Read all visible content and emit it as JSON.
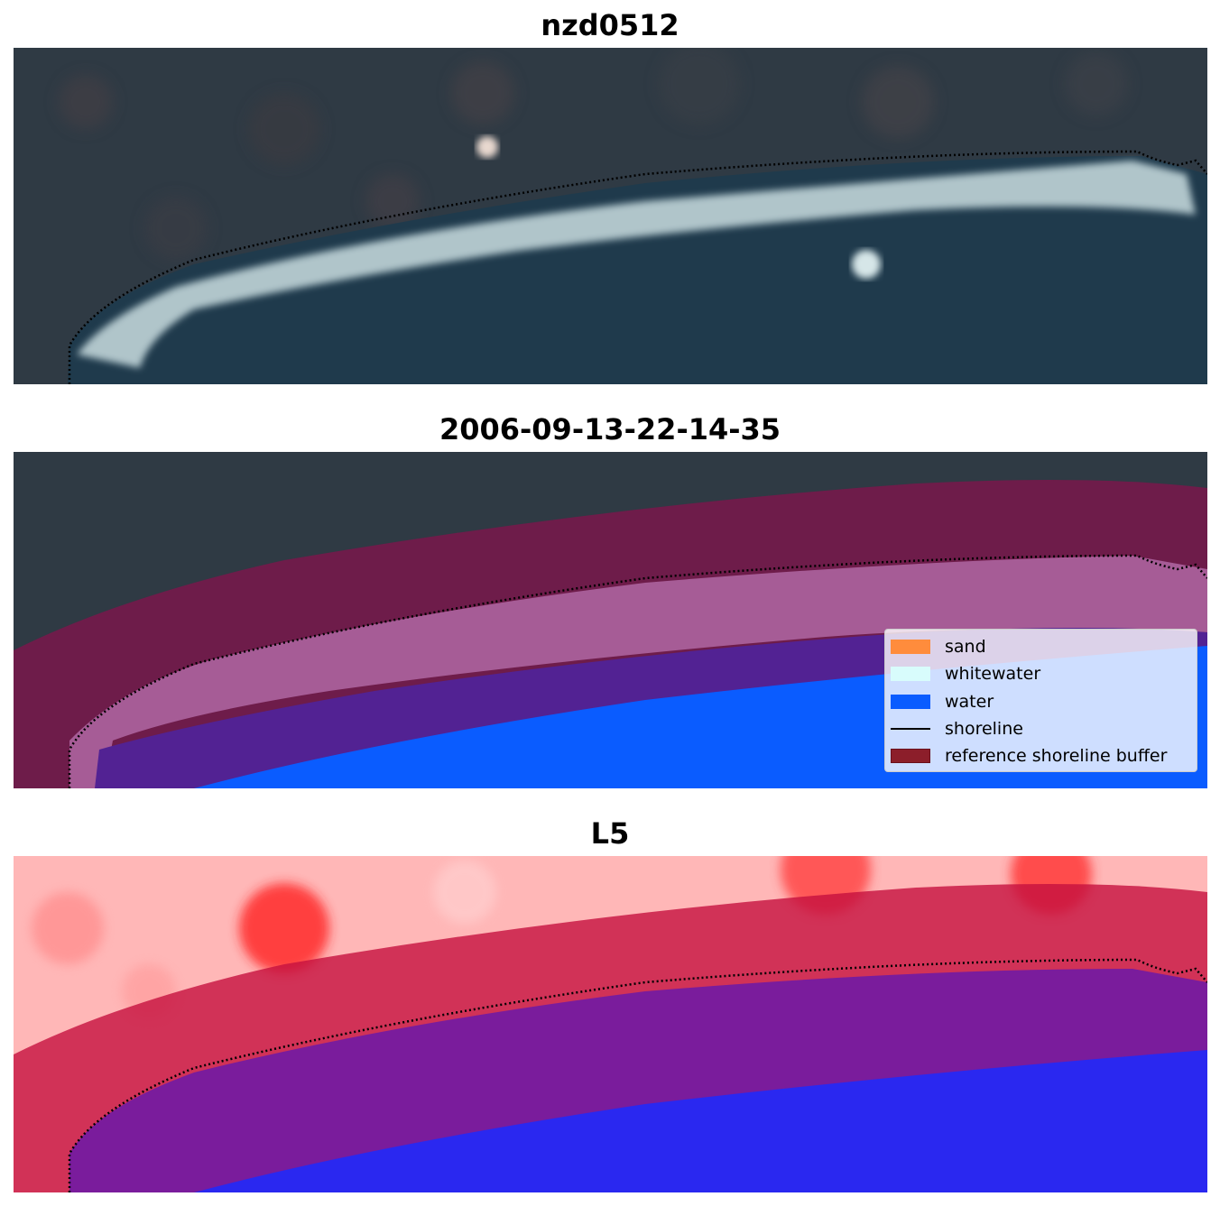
{
  "panels": [
    {
      "title": "nzd0512"
    },
    {
      "title": "2006-09-13-22-14-35"
    },
    {
      "title": "L5"
    }
  ],
  "legend": {
    "items": [
      {
        "label": "sand",
        "color": "#ff8c3c",
        "kind": "patch"
      },
      {
        "label": "whitewater",
        "color": "#d8fcfc",
        "kind": "patch"
      },
      {
        "label": "water",
        "color": "#0a5cff",
        "kind": "patch"
      },
      {
        "label": "shoreline",
        "color": "#000000",
        "kind": "line"
      },
      {
        "label": "reference shoreline buffer",
        "color": "#8c1e2a",
        "kind": "patch",
        "edge": "#6a0f1c"
      }
    ]
  }
}
